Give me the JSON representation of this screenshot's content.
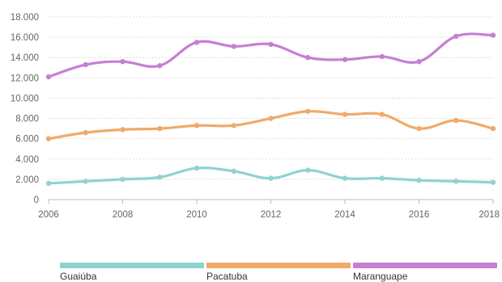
{
  "chart_data": {
    "type": "line",
    "x": [
      2006,
      2007,
      2008,
      2009,
      2010,
      2011,
      2012,
      2013,
      2014,
      2015,
      2016,
      2017,
      2018
    ],
    "x_ticks": [
      2006,
      2008,
      2010,
      2012,
      2014,
      2016,
      2018
    ],
    "y_ticks": [
      0,
      2000,
      4000,
      6000,
      8000,
      10000,
      12000,
      14000,
      16000,
      18000
    ],
    "y_tick_labels": [
      "0",
      "2.000",
      "4.000",
      "6.000",
      "8.000",
      "10.000",
      "12.000",
      "14.000",
      "16.000",
      "18.000"
    ],
    "ylim": [
      0,
      18000
    ],
    "xlim": [
      2006,
      2018
    ],
    "grid": true,
    "legend_position": "bottom",
    "series": [
      {
        "name": "Guaiúba",
        "color": "#8fd3d1",
        "values": [
          1600,
          1800,
          2000,
          2200,
          3100,
          2800,
          2100,
          2900,
          2100,
          2100,
          1900,
          1800,
          1700
        ]
      },
      {
        "name": "Pacatuba",
        "color": "#f0aa6a",
        "values": [
          6000,
          6600,
          6900,
          7000,
          7300,
          7300,
          8000,
          8700,
          8400,
          8400,
          7000,
          7800,
          7000
        ]
      },
      {
        "name": "Maranguape",
        "color": "#c67fd3",
        "values": [
          12100,
          13300,
          13600,
          13200,
          15500,
          15100,
          15300,
          14000,
          13800,
          14100,
          13600,
          16100,
          16200
        ]
      }
    ]
  }
}
